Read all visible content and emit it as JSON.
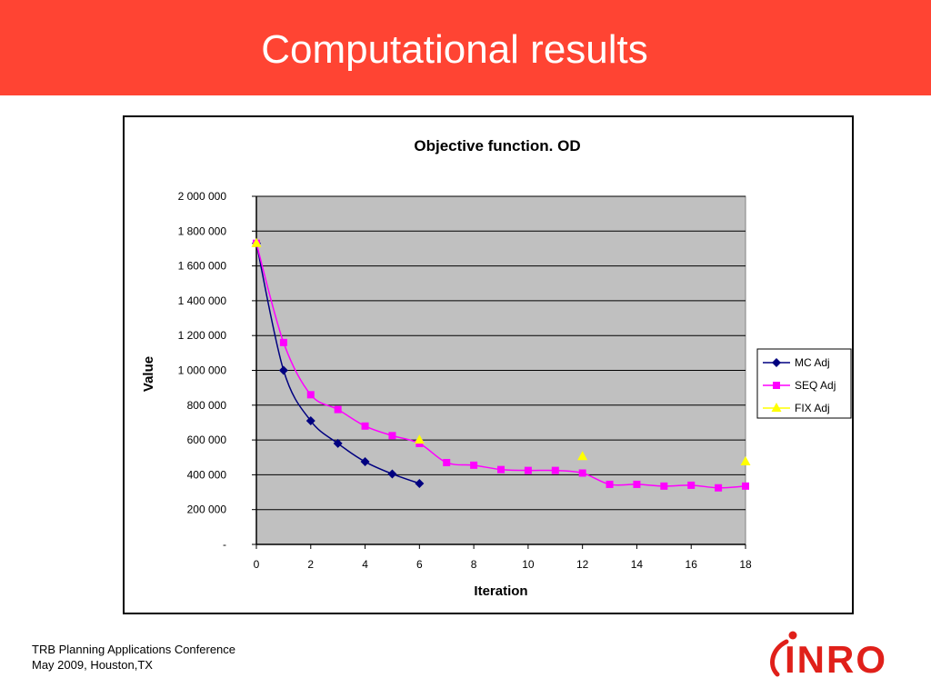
{
  "slide": {
    "title": "Computational results",
    "footer_line1": "TRB Planning Applications Conference",
    "footer_line2": "May 2009, Houston,TX",
    "logo_text": "INRO"
  },
  "colors": {
    "header": "#ff4433",
    "plot_background": "#c0c0c0",
    "mc_adj": "#000080",
    "seq_adj": "#ff00ff",
    "fix_adj": "#ffff00"
  },
  "chart_data": {
    "type": "line",
    "title": "Objective function. OD",
    "xlabel": "Iteration",
    "ylabel": "Value",
    "xlim": [
      0,
      18
    ],
    "ylim": [
      0,
      2000000
    ],
    "x_ticks": [
      "0",
      "2",
      "4",
      "6",
      "8",
      "10",
      "12",
      "14",
      "16",
      "18"
    ],
    "y_ticks": [
      "-",
      "200 000",
      "400 000",
      "600 000",
      "800 000",
      "1 000 000",
      "1 200 000",
      "1 400 000",
      "1 600 000",
      "1 800 000",
      "2 000 000"
    ],
    "grid": true,
    "legend_position": "right",
    "series": [
      {
        "name": "MC Adj",
        "marker": "diamond",
        "smooth": true,
        "x": [
          0,
          1,
          2,
          3,
          4,
          5,
          6
        ],
        "y": [
          1730000,
          1000000,
          710000,
          580000,
          475000,
          405000,
          350000
        ]
      },
      {
        "name": "SEQ Adj",
        "marker": "square",
        "smooth": true,
        "x": [
          0,
          1,
          2,
          3,
          4,
          5,
          6,
          7,
          8,
          9,
          10,
          11,
          12,
          13,
          14,
          15,
          16,
          17,
          18
        ],
        "y": [
          1730000,
          1160000,
          860000,
          775000,
          680000,
          625000,
          580000,
          470000,
          455000,
          430000,
          425000,
          425000,
          410000,
          345000,
          345000,
          335000,
          340000,
          325000,
          335000
        ]
      },
      {
        "name": "FIX Adj",
        "marker": "triangle",
        "smooth": false,
        "line": false,
        "x": [
          0,
          6,
          12,
          18
        ],
        "y": [
          1730000,
          600000,
          505000,
          475000
        ]
      }
    ]
  }
}
